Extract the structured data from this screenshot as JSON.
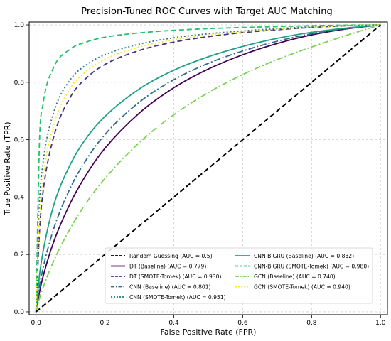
{
  "chart_data": {
    "type": "line",
    "title": "Precision-Tuned ROC Curves with Target AUC Matching",
    "xlabel": "False Positive Rate (FPR)",
    "ylabel": "True Positive Rate (TPR)",
    "xlim": [
      -0.02,
      1.02
    ],
    "ylim": [
      -0.01,
      1.01
    ],
    "x_ticks": [
      "0.0",
      "0.2",
      "0.4",
      "0.6",
      "0.8",
      "1.0"
    ],
    "y_ticks": [
      "0.0",
      "0.2",
      "0.4",
      "0.6",
      "0.8",
      "1.0"
    ],
    "grid": true,
    "legend_position": "bottom-right",
    "x": [
      0,
      0.01,
      0.02,
      0.05,
      0.1,
      0.15,
      0.2,
      0.3,
      0.4,
      0.5,
      0.6,
      0.7,
      0.8,
      0.9,
      1.0
    ],
    "series": [
      {
        "name": "Random Guessing (AUC = 0.5)",
        "color": "#000000",
        "dash": "dashed",
        "width": 2,
        "values": [
          0,
          0.01,
          0.02,
          0.05,
          0.1,
          0.15,
          0.2,
          0.3,
          0.4,
          0.5,
          0.6,
          0.7,
          0.8,
          0.9,
          1.0
        ]
      },
      {
        "name": "DT (Baseline) (AUC = 0.779)",
        "color": "#440154",
        "dash": "solid",
        "width": 1.8,
        "values": [
          0,
          0.069,
          0.121,
          0.24,
          0.38,
          0.486,
          0.57,
          0.693,
          0.781,
          0.846,
          0.896,
          0.935,
          0.965,
          0.986,
          1.0
        ]
      },
      {
        "name": "DT (SMOTE-Tomek) (AUC = 0.930)",
        "color": "#46337e",
        "dash": "dashed",
        "width": 1.8,
        "values": [
          0,
          0.281,
          0.414,
          0.604,
          0.749,
          0.819,
          0.862,
          0.911,
          0.94,
          0.959,
          0.973,
          0.983,
          0.991,
          0.997,
          1.0
        ]
      },
      {
        "name": "CNN (Baseline) (AUC = 0.801)",
        "color": "#30698e",
        "dash": "dashdot",
        "width": 1.8,
        "values": [
          0,
          0.088,
          0.15,
          0.285,
          0.433,
          0.538,
          0.618,
          0.731,
          0.809,
          0.866,
          0.909,
          0.943,
          0.969,
          0.987,
          1.0
        ]
      },
      {
        "name": "CNN (SMOTE-Tomek) (AUC = 0.951)",
        "color": "#2a788e",
        "dash": "dotted",
        "width": 1.8,
        "values": [
          0,
          0.377,
          0.516,
          0.69,
          0.81,
          0.864,
          0.896,
          0.933,
          0.955,
          0.969,
          0.979,
          0.987,
          0.993,
          0.997,
          1.0
        ]
      },
      {
        "name": "CNN-BiGRU (Baseline) (AUC = 0.832)",
        "color": "#1fa187",
        "dash": "solid",
        "width": 1.8,
        "values": [
          0,
          0.127,
          0.207,
          0.366,
          0.515,
          0.612,
          0.681,
          0.777,
          0.842,
          0.889,
          0.925,
          0.953,
          0.974,
          0.989,
          1.0
        ]
      },
      {
        "name": "CNN-BiGRU (SMOTE-Tomek) (AUC = 0.980)",
        "color": "#22c36b",
        "dash": "dashed",
        "width": 1.8,
        "values": [
          0,
          0.594,
          0.721,
          0.849,
          0.916,
          0.942,
          0.957,
          0.972,
          0.981,
          0.987,
          0.991,
          0.994,
          0.997,
          0.999,
          1.0
        ]
      },
      {
        "name": "GCN (Baseline) (AUC = 0.740)",
        "color": "#7ad151",
        "dash": "dashdot",
        "width": 1.8,
        "values": [
          0,
          0.046,
          0.083,
          0.174,
          0.292,
          0.387,
          0.465,
          0.59,
          0.687,
          0.764,
          0.827,
          0.879,
          0.923,
          0.963,
          1.0
        ]
      },
      {
        "name": "GCN (SMOTE-Tomek) (AUC = 0.940)",
        "color": "#fde725",
        "dash": "dotted",
        "width": 1.8,
        "values": [
          0,
          0.326,
          0.464,
          0.645,
          0.78,
          0.842,
          0.88,
          0.923,
          0.948,
          0.964,
          0.976,
          0.985,
          0.992,
          0.997,
          1.0
        ]
      }
    ]
  }
}
